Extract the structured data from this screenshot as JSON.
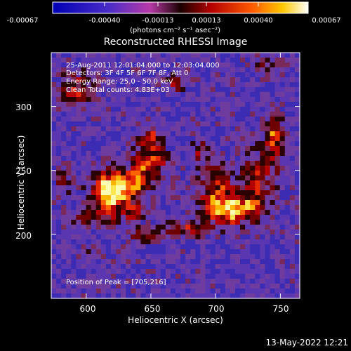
{
  "title": "Reconstructed RHESSI Image",
  "colorbar": {
    "ticks": [
      "-0.00067",
      "-0.00040",
      "-0.00013",
      "0.00013",
      "0.00040",
      "0.00067"
    ],
    "unit": "(photons cm⁻² s⁻¹ asec⁻²)",
    "range": [
      -0.00067,
      0.00067
    ]
  },
  "info_lines": [
    "25-Aug-2011 12:01:04.000 to 12:03:04.000",
    "Detectors: 3F 4F 5F 6F 7F 8F, Att 0",
    "Energy Range: 25.0 - 50.0 keV",
    "Clean    Total counts: 4.83E+03"
  ],
  "peak_text": "Position of Peak = [705,216]",
  "axes": {
    "xlabel": "Heliocentric X (arcsec)",
    "ylabel": "Heliocentric Y (arcsec)",
    "xlim": [
      573,
      765
    ],
    "ylim": [
      150,
      342
    ],
    "xticks": [
      600,
      650,
      700,
      750
    ],
    "yticks": [
      200,
      250,
      300
    ]
  },
  "footer_date": "13-May-2022 12:21"
}
